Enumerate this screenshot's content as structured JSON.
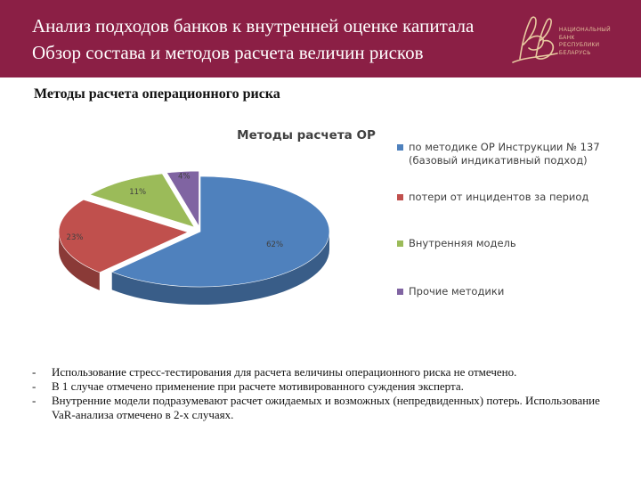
{
  "header": {
    "title_line1": "Анализ подходов банков к внутренней оценке капитала",
    "title_line2": "Обзор состава и методов расчета величин рисков",
    "logo_lines": [
      "НАЦИОНАЛЬНЫЙ",
      "БАНК",
      "РЕСПУБЛИКИ",
      "БЕЛАРУСЬ"
    ],
    "logo_icon": "monogram-logo-icon",
    "color_bg": "#8b1f45",
    "color_logo": "#e8c9a0"
  },
  "section_title": "Методы расчета операционного риска",
  "chart_data": {
    "type": "pie",
    "title": "Методы расчета ОР",
    "legend_position": "right",
    "slices": [
      {
        "label": "по методике ОР Инструкции № 137 (базовый индикативный подход)",
        "value": 62,
        "data_label": "62%",
        "color": "#4f81bd"
      },
      {
        "label": "потери от инцидентов за период",
        "value": 23,
        "data_label": "23%",
        "color": "#c0504d"
      },
      {
        "label": "Внутренняя модель",
        "value": 11,
        "data_label": "11%",
        "color": "#9bbb59"
      },
      {
        "label": "Прочие методики",
        "value": 4,
        "data_label": "4%",
        "color": "#8064a2"
      }
    ]
  },
  "bullets": [
    {
      "dash": "-",
      "text": "Использование стресс-тестирования для расчета величины операционного риска не отмечено."
    },
    {
      "dash": "-",
      "text": "В 1 случае отмечено применение при расчете мотивированного суждения эксперта."
    },
    {
      "dash": "-",
      "text": "Внутренние модели подразумевают расчет ожидаемых и возможных (непредвиденных) потерь. Использование VaR-анализа отмечено в 2-х случаях."
    }
  ]
}
